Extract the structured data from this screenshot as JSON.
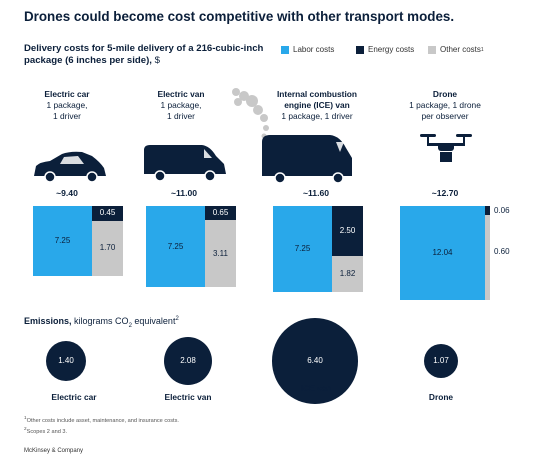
{
  "title": "Drones could become cost competitive with other transport modes.",
  "subtitle": "Delivery costs for 5-mile delivery of a 216-cubic-inch package (6 inches per side),",
  "subtitle_unit": "$",
  "legend": [
    {
      "label": "Labor costs",
      "color": "#29a8ea"
    },
    {
      "label": "Energy costs",
      "color": "#0b1f3a"
    },
    {
      "label": "Other costs",
      "sup": "1",
      "color": "#c8c8c8"
    }
  ],
  "modes": [
    {
      "name": "Electric car",
      "desc": [
        "1 package,",
        "1 driver"
      ],
      "total": "~9.40",
      "emissions": 1.4,
      "emissions_label": "1.40",
      "emissions_name": "Electric car",
      "icon": "electric-car-icon"
    },
    {
      "name": "Electric van",
      "desc": [
        "1 package,",
        "1 driver"
      ],
      "total": "~11.00",
      "emissions": 2.08,
      "emissions_label": "2.08",
      "emissions_name": "Electric van",
      "icon": "electric-van-icon"
    },
    {
      "name_lines": [
        "Internal combustion",
        "engine (ICE) van"
      ],
      "desc": [
        "1 package, 1 driver"
      ],
      "total": "~11.60",
      "emissions": 6.4,
      "emissions_label": "6.40",
      "emissions_name": "ICE van",
      "icon": "ice-van-icon"
    },
    {
      "name": "Drone",
      "desc": [
        "1 package, 1 drone",
        "per observer"
      ],
      "total": "~12.70",
      "emissions": 1.07,
      "emissions_label": "1.07",
      "emissions_name": "Drone",
      "icon": "drone-icon"
    }
  ],
  "emissions_title": {
    "bold": "Emissions,",
    "rest": "kilograms CO",
    "sub": "2",
    "rest2": " equivalent",
    "sup": "2"
  },
  "footnotes": [
    "Other costs include asset, maintenance, and insurance costs.",
    "Scopes 2 and 3."
  ],
  "footnote_marks": [
    "1",
    "2"
  ],
  "brand": "McKinsey & Company",
  "chart_data": {
    "type": "bar",
    "stacked": true,
    "categories": [
      "Electric car",
      "Electric van",
      "Internal combustion engine (ICE) van",
      "Drone"
    ],
    "series": [
      {
        "name": "Labor costs",
        "values": [
          7.25,
          7.25,
          7.25,
          12.04
        ]
      },
      {
        "name": "Energy costs",
        "values": [
          0.45,
          0.65,
          2.5,
          0.06
        ]
      },
      {
        "name": "Other costs",
        "values": [
          1.7,
          3.11,
          1.82,
          0.6
        ]
      }
    ],
    "totals": [
      "~9.40",
      "~11.00",
      "~11.60",
      "~12.70"
    ],
    "value_labels": [
      [
        "7.25",
        "0.45",
        "1.70"
      ],
      [
        "7.25",
        "0.65",
        "3.11"
      ],
      [
        "7.25",
        "2.50",
        "1.82"
      ],
      [
        "12.04",
        "0.06",
        "0.60"
      ]
    ],
    "title": "Delivery costs for 5-mile delivery of a 216-cubic-inch package (6 inches per side), $",
    "legend_position": "top-right",
    "grid": false,
    "emissions": {
      "unit": "kilograms CO2 equivalent",
      "values": [
        1.4,
        2.08,
        6.4,
        1.07
      ]
    }
  }
}
